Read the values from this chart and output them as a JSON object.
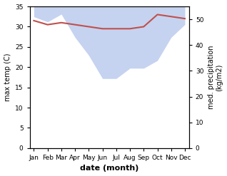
{
  "months": [
    "Jan",
    "Feb",
    "Mar",
    "Apr",
    "May",
    "Jun",
    "Jul",
    "Aug",
    "Sep",
    "Oct",
    "Nov",
    "Dec"
  ],
  "max_temp": [
    31.5,
    30.5,
    31.0,
    30.5,
    30.0,
    29.5,
    29.5,
    29.5,
    30.0,
    33.0,
    32.5,
    32.0
  ],
  "precipitation": [
    51,
    49,
    52,
    43,
    36,
    27,
    27,
    31,
    31,
    34,
    43,
    48
  ],
  "temp_color": "#c0504d",
  "precip_fill_color": "#c5d3f0",
  "xlabel": "date (month)",
  "ylabel_left": "max temp (C)",
  "ylabel_right": "med. precipitation\n(kg/m2)",
  "ylim_left": [
    0,
    35
  ],
  "ylim_right": [
    0,
    55
  ],
  "yticks_left": [
    0,
    5,
    10,
    15,
    20,
    25,
    30,
    35
  ],
  "yticks_right": [
    0,
    10,
    20,
    30,
    40,
    50
  ],
  "background_color": "#ffffff"
}
